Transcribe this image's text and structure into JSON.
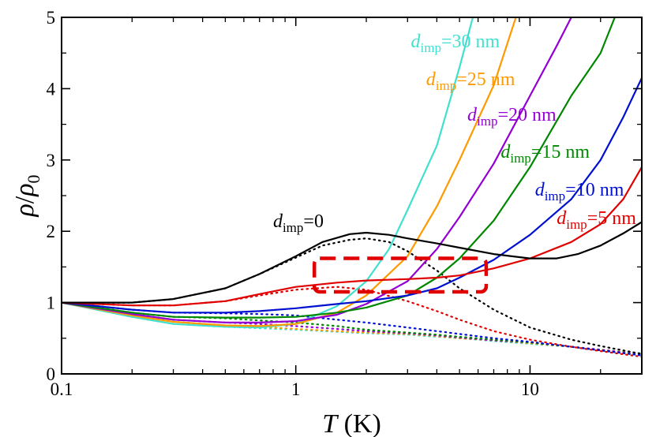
{
  "chart_data": {
    "type": "line",
    "xscale": "log",
    "xlim": [
      0.1,
      30
    ],
    "ylim": [
      0,
      5
    ],
    "xlabel": {
      "var": "T",
      "unit": " (K)"
    },
    "ylabel": {
      "num": "ρ",
      "slash": "/",
      "den": "ρ",
      "den_sub": "0"
    },
    "x_ticks": [
      {
        "value": 0.1,
        "label": "0.1"
      },
      {
        "value": 1,
        "label": "1"
      },
      {
        "value": 10,
        "label": "10"
      }
    ],
    "y_ticks": [
      {
        "value": 0,
        "label": "0"
      },
      {
        "value": 1,
        "label": "1"
      },
      {
        "value": 2,
        "label": "2"
      },
      {
        "value": 3,
        "label": "3"
      },
      {
        "value": 4,
        "label": "4"
      },
      {
        "value": 5,
        "label": "5"
      }
    ],
    "series": [
      {
        "name": "d_imp=0",
        "label_value": "0",
        "label_unit": "",
        "color": "#000000",
        "label_anchor": [
          0.8,
          2.06
        ],
        "solid": [
          [
            0.1,
            1.0
          ],
          [
            0.2,
            1.0
          ],
          [
            0.3,
            1.05
          ],
          [
            0.5,
            1.2
          ],
          [
            0.7,
            1.4
          ],
          [
            1.0,
            1.65
          ],
          [
            1.3,
            1.85
          ],
          [
            1.7,
            1.96
          ],
          [
            2.0,
            1.98
          ],
          [
            2.5,
            1.95
          ],
          [
            3.0,
            1.9
          ],
          [
            4.0,
            1.83
          ],
          [
            5.0,
            1.77
          ],
          [
            7.0,
            1.68
          ],
          [
            10.0,
            1.62
          ],
          [
            13.0,
            1.62
          ],
          [
            16.0,
            1.68
          ],
          [
            20.0,
            1.8
          ],
          [
            25.0,
            1.97
          ],
          [
            30.0,
            2.13
          ]
        ],
        "dotted": [
          [
            0.1,
            1.0
          ],
          [
            0.2,
            1.0
          ],
          [
            0.3,
            1.05
          ],
          [
            0.5,
            1.2
          ],
          [
            0.7,
            1.4
          ],
          [
            1.0,
            1.63
          ],
          [
            1.3,
            1.8
          ],
          [
            1.7,
            1.88
          ],
          [
            2.0,
            1.9
          ],
          [
            2.5,
            1.85
          ],
          [
            3.0,
            1.72
          ],
          [
            4.0,
            1.45
          ],
          [
            5.0,
            1.2
          ],
          [
            7.0,
            0.9
          ],
          [
            10.0,
            0.65
          ],
          [
            15.0,
            0.48
          ],
          [
            20.0,
            0.39
          ],
          [
            30.0,
            0.28
          ]
        ]
      },
      {
        "name": "d_imp=5 nm",
        "label_value": "5",
        "label_unit": " nm",
        "color": "#e00000",
        "label_anchor": [
          13.0,
          2.1
        ],
        "solid": [
          [
            0.1,
            1.0
          ],
          [
            0.2,
            0.96
          ],
          [
            0.3,
            0.96
          ],
          [
            0.5,
            1.02
          ],
          [
            0.7,
            1.12
          ],
          [
            1.0,
            1.22
          ],
          [
            1.5,
            1.28
          ],
          [
            2.0,
            1.31
          ],
          [
            3.0,
            1.33
          ],
          [
            4.0,
            1.35
          ],
          [
            5.0,
            1.38
          ],
          [
            7.0,
            1.48
          ],
          [
            10.0,
            1.62
          ],
          [
            15.0,
            1.85
          ],
          [
            20.0,
            2.1
          ],
          [
            25.0,
            2.45
          ],
          [
            30.0,
            2.9
          ]
        ],
        "dotted": [
          [
            0.1,
            1.0
          ],
          [
            0.2,
            0.96
          ],
          [
            0.3,
            0.96
          ],
          [
            0.5,
            1.02
          ],
          [
            0.7,
            1.1
          ],
          [
            1.0,
            1.18
          ],
          [
            1.5,
            1.22
          ],
          [
            2.0,
            1.18
          ],
          [
            3.0,
            1.02
          ],
          [
            4.0,
            0.88
          ],
          [
            5.0,
            0.76
          ],
          [
            7.0,
            0.6
          ],
          [
            10.0,
            0.48
          ],
          [
            15.0,
            0.38
          ],
          [
            20.0,
            0.32
          ],
          [
            30.0,
            0.24
          ]
        ]
      },
      {
        "name": "d_imp=10 nm",
        "label_value": "10",
        "label_unit": " nm",
        "color": "#0010d0",
        "label_anchor": [
          10.5,
          2.5
        ],
        "solid": [
          [
            0.1,
            1.0
          ],
          [
            0.2,
            0.9
          ],
          [
            0.3,
            0.86
          ],
          [
            0.5,
            0.86
          ],
          [
            0.7,
            0.88
          ],
          [
            1.0,
            0.92
          ],
          [
            1.5,
            0.98
          ],
          [
            2.0,
            1.02
          ],
          [
            3.0,
            1.1
          ],
          [
            4.0,
            1.2
          ],
          [
            5.0,
            1.35
          ],
          [
            7.0,
            1.6
          ],
          [
            10.0,
            1.95
          ],
          [
            15.0,
            2.45
          ],
          [
            20.0,
            3.0
          ],
          [
            25.0,
            3.6
          ],
          [
            30.0,
            4.15
          ]
        ],
        "dotted": [
          [
            0.1,
            1.0
          ],
          [
            0.2,
            0.9
          ],
          [
            0.3,
            0.86
          ],
          [
            0.5,
            0.85
          ],
          [
            0.7,
            0.84
          ],
          [
            1.0,
            0.82
          ],
          [
            1.5,
            0.76
          ],
          [
            2.0,
            0.72
          ],
          [
            3.0,
            0.65
          ],
          [
            4.0,
            0.6
          ],
          [
            5.0,
            0.56
          ],
          [
            7.0,
            0.5
          ],
          [
            10.0,
            0.45
          ],
          [
            15.0,
            0.38
          ],
          [
            20.0,
            0.33
          ],
          [
            30.0,
            0.26
          ]
        ]
      },
      {
        "name": "d_imp=15 nm",
        "label_value": "15",
        "label_unit": " nm",
        "color": "#008800",
        "label_anchor": [
          7.5,
          3.03
        ],
        "solid": [
          [
            0.1,
            1.0
          ],
          [
            0.2,
            0.86
          ],
          [
            0.3,
            0.8
          ],
          [
            0.5,
            0.79
          ],
          [
            0.7,
            0.79
          ],
          [
            1.0,
            0.8
          ],
          [
            1.5,
            0.86
          ],
          [
            2.0,
            0.93
          ],
          [
            3.0,
            1.1
          ],
          [
            4.0,
            1.35
          ],
          [
            5.0,
            1.62
          ],
          [
            7.0,
            2.15
          ],
          [
            10.0,
            2.9
          ],
          [
            15.0,
            3.9
          ],
          [
            20.0,
            4.5
          ],
          [
            23.0,
            5.0
          ]
        ],
        "dotted": [
          [
            0.1,
            1.0
          ],
          [
            0.2,
            0.86
          ],
          [
            0.3,
            0.8
          ],
          [
            0.5,
            0.78
          ],
          [
            0.7,
            0.75
          ],
          [
            1.0,
            0.72
          ],
          [
            1.5,
            0.67
          ],
          [
            2.0,
            0.62
          ],
          [
            3.0,
            0.58
          ],
          [
            4.0,
            0.55
          ],
          [
            5.0,
            0.52
          ],
          [
            7.0,
            0.48
          ],
          [
            10.0,
            0.44
          ],
          [
            15.0,
            0.38
          ],
          [
            20.0,
            0.33
          ],
          [
            30.0,
            0.26
          ]
        ]
      },
      {
        "name": "d_imp=20 nm",
        "label_value": "20",
        "label_unit": " nm",
        "color": "#9400d3",
        "label_anchor": [
          5.4,
          3.55
        ],
        "solid": [
          [
            0.1,
            1.0
          ],
          [
            0.2,
            0.84
          ],
          [
            0.3,
            0.76
          ],
          [
            0.5,
            0.72
          ],
          [
            0.7,
            0.72
          ],
          [
            1.0,
            0.74
          ],
          [
            1.5,
            0.83
          ],
          [
            2.0,
            0.98
          ],
          [
            3.0,
            1.3
          ],
          [
            4.0,
            1.75
          ],
          [
            5.0,
            2.2
          ],
          [
            7.0,
            2.95
          ],
          [
            10.0,
            3.9
          ],
          [
            13.0,
            4.6
          ],
          [
            15.0,
            5.0
          ]
        ],
        "dotted": [
          [
            0.1,
            1.0
          ],
          [
            0.2,
            0.84
          ],
          [
            0.3,
            0.76
          ],
          [
            0.5,
            0.72
          ],
          [
            0.7,
            0.7
          ],
          [
            1.0,
            0.67
          ],
          [
            1.5,
            0.63
          ],
          [
            2.0,
            0.6
          ],
          [
            3.0,
            0.57
          ],
          [
            4.0,
            0.54
          ],
          [
            5.0,
            0.51
          ],
          [
            7.0,
            0.47
          ],
          [
            10.0,
            0.44
          ],
          [
            15.0,
            0.38
          ],
          [
            20.0,
            0.34
          ],
          [
            30.0,
            0.27
          ]
        ]
      },
      {
        "name": "d_imp=25 nm",
        "label_value": "25",
        "label_unit": " nm",
        "color": "#ff9900",
        "label_anchor": [
          3.6,
          4.05
        ],
        "solid": [
          [
            0.1,
            1.0
          ],
          [
            0.2,
            0.82
          ],
          [
            0.3,
            0.73
          ],
          [
            0.5,
            0.68
          ],
          [
            0.7,
            0.67
          ],
          [
            1.0,
            0.7
          ],
          [
            1.5,
            0.86
          ],
          [
            2.0,
            1.1
          ],
          [
            3.0,
            1.65
          ],
          [
            4.0,
            2.35
          ],
          [
            5.0,
            3.0
          ],
          [
            7.0,
            4.05
          ],
          [
            8.7,
            5.0
          ]
        ],
        "dotted": [
          [
            0.1,
            1.0
          ],
          [
            0.2,
            0.82
          ],
          [
            0.3,
            0.73
          ],
          [
            0.5,
            0.68
          ],
          [
            0.7,
            0.66
          ],
          [
            1.0,
            0.63
          ],
          [
            1.5,
            0.6
          ],
          [
            2.0,
            0.58
          ],
          [
            3.0,
            0.56
          ],
          [
            4.0,
            0.53
          ],
          [
            5.0,
            0.5
          ],
          [
            7.0,
            0.47
          ],
          [
            10.0,
            0.43
          ],
          [
            15.0,
            0.38
          ],
          [
            20.0,
            0.34
          ],
          [
            30.0,
            0.28
          ]
        ]
      },
      {
        "name": "d_imp=30 nm",
        "label_value": "30",
        "label_unit": " nm",
        "color": "#40e0d0",
        "label_anchor": [
          3.1,
          4.58
        ],
        "solid": [
          [
            0.1,
            1.0
          ],
          [
            0.2,
            0.8
          ],
          [
            0.3,
            0.7
          ],
          [
            0.5,
            0.66
          ],
          [
            0.7,
            0.65
          ],
          [
            1.0,
            0.7
          ],
          [
            1.5,
            0.95
          ],
          [
            2.0,
            1.3
          ],
          [
            2.5,
            1.75
          ],
          [
            3.0,
            2.3
          ],
          [
            4.0,
            3.2
          ],
          [
            5.0,
            4.3
          ],
          [
            5.7,
            5.0
          ]
        ],
        "dotted": [
          [
            0.1,
            1.0
          ],
          [
            0.2,
            0.8
          ],
          [
            0.3,
            0.7
          ],
          [
            0.5,
            0.66
          ],
          [
            0.7,
            0.64
          ],
          [
            1.0,
            0.62
          ],
          [
            1.5,
            0.59
          ],
          [
            2.0,
            0.57
          ],
          [
            3.0,
            0.55
          ],
          [
            4.0,
            0.52
          ],
          [
            5.0,
            0.5
          ],
          [
            7.0,
            0.46
          ],
          [
            10.0,
            0.42
          ],
          [
            15.0,
            0.38
          ],
          [
            20.0,
            0.34
          ],
          [
            30.0,
            0.29
          ]
        ]
      }
    ],
    "label_parts": {
      "var": "d",
      "sub": "imp",
      "eq": "="
    },
    "highlight_box": {
      "x": [
        1.2,
        6.5
      ],
      "y": [
        1.15,
        1.62
      ],
      "color": "#e00000"
    }
  }
}
